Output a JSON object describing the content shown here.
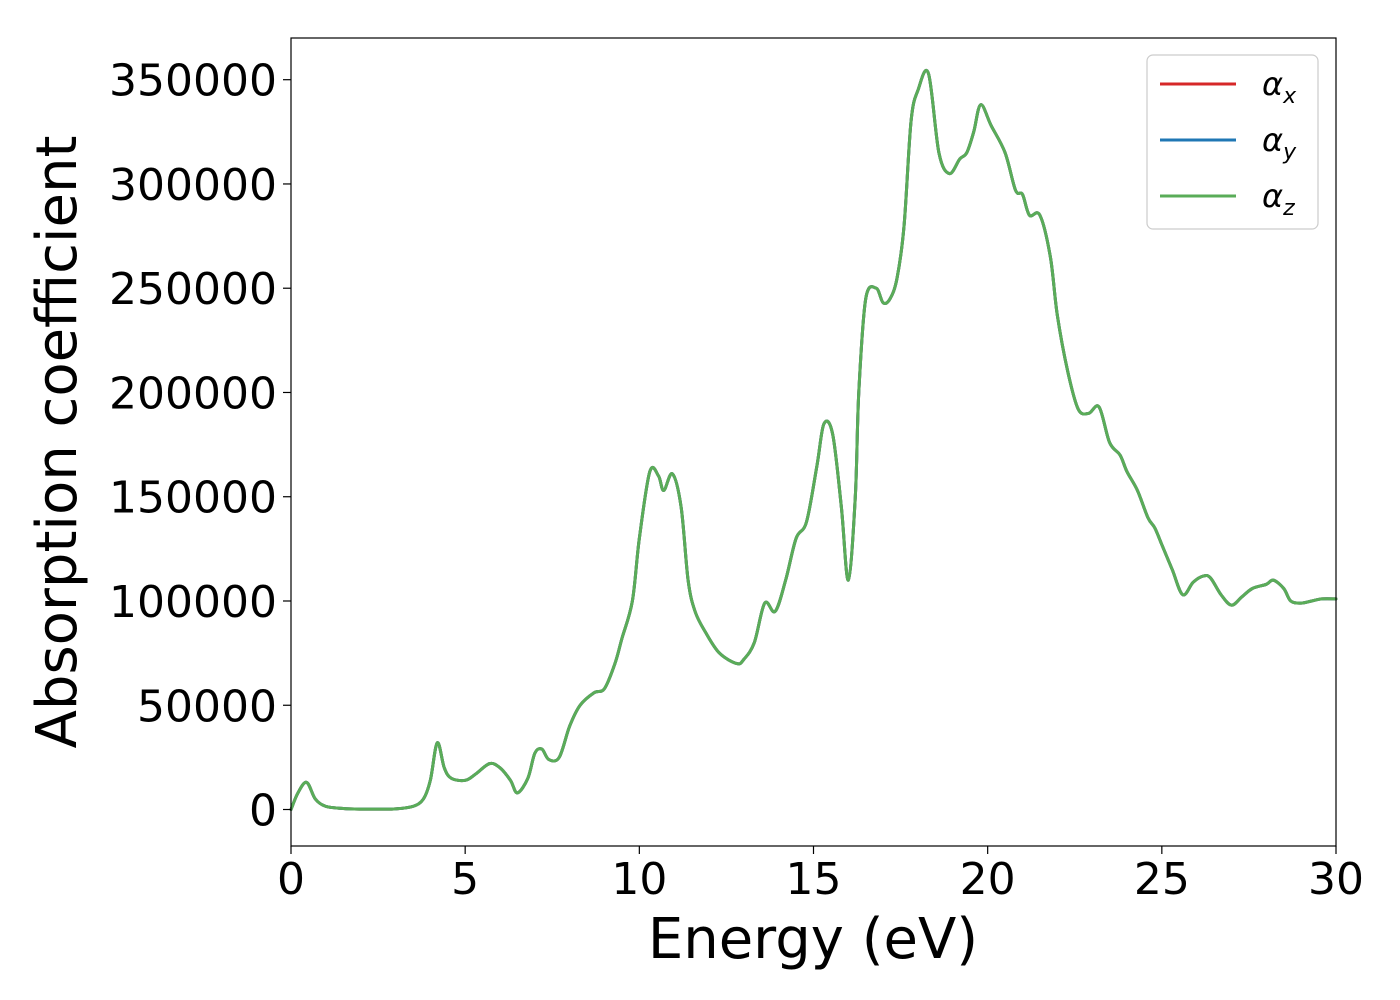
{
  "chart_data": {
    "type": "line",
    "title": "",
    "xlabel": "Energy (eV)",
    "ylabel": "Absorption coefficient",
    "xlim": [
      0,
      30
    ],
    "ylim": [
      -17500,
      370000
    ],
    "x_ticks": [
      0,
      5,
      10,
      15,
      20,
      25,
      30
    ],
    "x_tick_labels": [
      "0",
      "5",
      "10",
      "15",
      "20",
      "25",
      "30"
    ],
    "y_ticks": [
      0,
      50000,
      100000,
      150000,
      200000,
      250000,
      300000,
      350000
    ],
    "y_tick_labels": [
      "0",
      "50000",
      "100000",
      "150000",
      "200000",
      "250000",
      "300000",
      "350000"
    ],
    "grid": false,
    "legend_position": "top-right",
    "x": [
      0,
      0.2,
      0.45,
      0.7,
      1.0,
      1.5,
      2.0,
      2.5,
      3.0,
      3.5,
      3.8,
      4.0,
      4.2,
      4.4,
      4.6,
      5.0,
      5.3,
      5.7,
      6.0,
      6.3,
      6.5,
      6.8,
      7.0,
      7.2,
      7.4,
      7.7,
      8.0,
      8.3,
      8.7,
      9.0,
      9.3,
      9.5,
      9.8,
      10.0,
      10.3,
      10.55,
      10.7,
      10.95,
      11.2,
      11.4,
      11.6,
      11.9,
      12.3,
      12.8,
      13.0,
      13.3,
      13.6,
      13.9,
      14.2,
      14.5,
      14.8,
      15.1,
      15.3,
      15.55,
      15.8,
      16.0,
      16.2,
      16.3,
      16.5,
      16.8,
      17.0,
      17.2,
      17.4,
      17.6,
      17.8,
      18.0,
      18.3,
      18.6,
      18.9,
      19.2,
      19.4,
      19.6,
      19.8,
      20.1,
      20.5,
      20.8,
      21.0,
      21.2,
      21.5,
      21.8,
      22.0,
      22.3,
      22.6,
      22.9,
      23.2,
      23.5,
      23.8,
      24.0,
      24.3,
      24.6,
      24.8,
      25.0,
      25.3,
      25.6,
      25.9,
      26.2,
      26.4,
      26.7,
      27.0,
      27.3,
      27.6,
      28.0,
      28.2,
      28.5,
      28.7,
      29.0,
      29.3,
      29.6,
      30.0
    ],
    "series": [
      {
        "name": "α_x",
        "color": "#d62728",
        "values": [
          0,
          8000,
          13000,
          5000,
          1500,
          500,
          200,
          200,
          300,
          1500,
          5000,
          14000,
          32000,
          20000,
          15000,
          14000,
          17000,
          22000,
          20000,
          14000,
          8000,
          15000,
          27000,
          29000,
          24000,
          25000,
          40000,
          50000,
          56000,
          58000,
          70000,
          82000,
          100000,
          130000,
          162000,
          160000,
          153000,
          161000,
          145000,
          110000,
          95000,
          85000,
          75000,
          70000,
          72000,
          80000,
          99000,
          95000,
          110000,
          130000,
          138000,
          165000,
          185000,
          180000,
          145000,
          110000,
          150000,
          200000,
          245000,
          250000,
          243000,
          245000,
          255000,
          280000,
          330000,
          345000,
          353000,
          315000,
          305000,
          312000,
          315000,
          325000,
          338000,
          328000,
          315000,
          297000,
          295000,
          285000,
          285000,
          265000,
          237000,
          210000,
          192000,
          190000,
          193000,
          176000,
          170000,
          162000,
          153000,
          140000,
          135000,
          127000,
          115000,
          103000,
          109000,
          112000,
          111000,
          103000,
          98000,
          102000,
          106000,
          108000,
          110000,
          106000,
          100000,
          99000,
          100000,
          101000,
          101000
        ]
      },
      {
        "name": "α_y",
        "color": "#1f77b4",
        "values": [
          0,
          8000,
          13000,
          5000,
          1500,
          500,
          200,
          200,
          300,
          1500,
          5000,
          14000,
          32000,
          20000,
          15000,
          14000,
          17000,
          22000,
          20000,
          14000,
          8000,
          15000,
          27000,
          29000,
          24000,
          25000,
          40000,
          50000,
          56000,
          58000,
          70000,
          82000,
          100000,
          130000,
          162000,
          160000,
          153000,
          161000,
          145000,
          110000,
          95000,
          85000,
          75000,
          70000,
          72000,
          80000,
          99000,
          95000,
          110000,
          130000,
          138000,
          165000,
          185000,
          180000,
          145000,
          110000,
          150000,
          200000,
          245000,
          250000,
          243000,
          245000,
          255000,
          280000,
          330000,
          345000,
          353000,
          315000,
          305000,
          312000,
          315000,
          325000,
          338000,
          328000,
          315000,
          297000,
          295000,
          285000,
          285000,
          265000,
          237000,
          210000,
          192000,
          190000,
          193000,
          176000,
          170000,
          162000,
          153000,
          140000,
          135000,
          127000,
          115000,
          103000,
          109000,
          112000,
          111000,
          103000,
          98000,
          102000,
          106000,
          108000,
          110000,
          106000,
          100000,
          99000,
          100000,
          101000,
          101000
        ]
      },
      {
        "name": "α_z",
        "color": "#5aac58",
        "values": [
          0,
          8000,
          13000,
          5000,
          1500,
          500,
          200,
          200,
          300,
          1500,
          5000,
          14000,
          32000,
          20000,
          15000,
          14000,
          17000,
          22000,
          20000,
          14000,
          8000,
          15000,
          27000,
          29000,
          24000,
          25000,
          40000,
          50000,
          56000,
          58000,
          70000,
          82000,
          100000,
          130000,
          162000,
          160000,
          153000,
          161000,
          145000,
          110000,
          95000,
          85000,
          75000,
          70000,
          72000,
          80000,
          99000,
          95000,
          110000,
          130000,
          138000,
          165000,
          185000,
          180000,
          145000,
          110000,
          150000,
          200000,
          245000,
          250000,
          243000,
          245000,
          255000,
          280000,
          330000,
          345000,
          353000,
          315000,
          305000,
          312000,
          315000,
          325000,
          338000,
          328000,
          315000,
          297000,
          295000,
          285000,
          285000,
          265000,
          237000,
          210000,
          192000,
          190000,
          193000,
          176000,
          170000,
          162000,
          153000,
          140000,
          135000,
          127000,
          115000,
          103000,
          109000,
          112000,
          111000,
          103000,
          98000,
          102000,
          106000,
          108000,
          110000,
          106000,
          100000,
          99000,
          100000,
          101000,
          101000
        ]
      }
    ]
  }
}
